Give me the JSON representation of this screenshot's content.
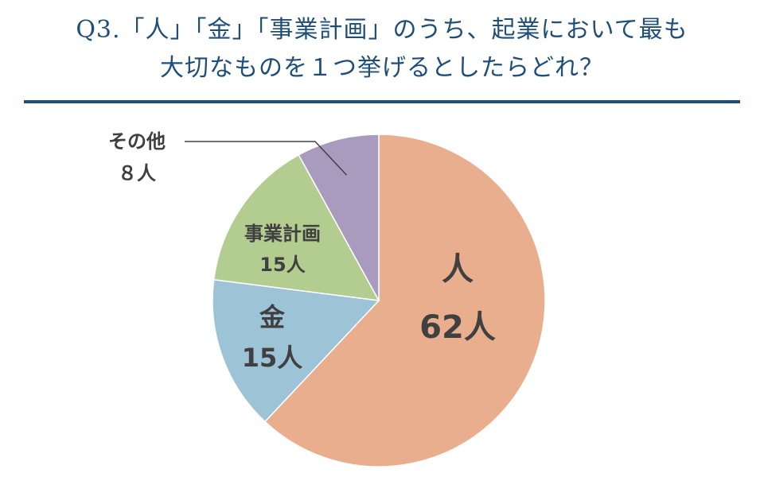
{
  "title": {
    "line1": "Q3.「人」「金」「事業計画」のうち、起業において最も",
    "line2": "大切なものを１つ挙げるとしたらどれ？"
  },
  "chart_data": {
    "type": "pie",
    "start": "top",
    "direction": "clockwise",
    "slices": [
      {
        "label": "人",
        "value": 62,
        "value_label": "62人",
        "color": "#e9ae8e"
      },
      {
        "label": "金",
        "value": 15,
        "value_label": "15人",
        "color": "#9dc3d6"
      },
      {
        "label": "事業計画",
        "value": 15,
        "value_label": "15人",
        "color": "#b3cc8f"
      },
      {
        "label": "その他",
        "value": 8,
        "value_label": "８人",
        "color": "#a99bbd"
      }
    ]
  }
}
